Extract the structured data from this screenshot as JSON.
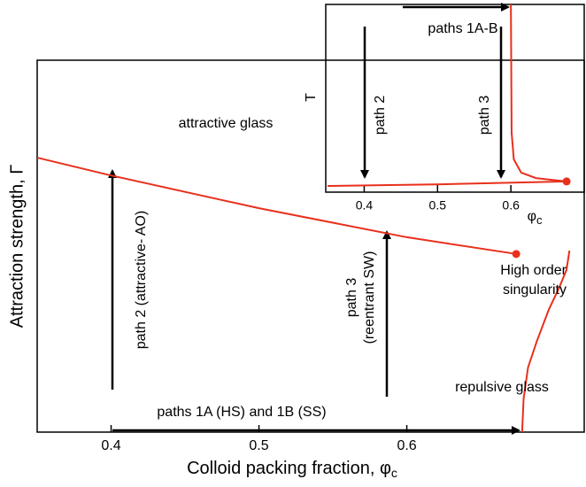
{
  "chart_data": [
    {
      "type": "line",
      "xlabel": "Colloid packing fraction, φ",
      "xlabel_sub": "c",
      "ylabel": "Attraction strength, Γ",
      "xlim": [
        0.35,
        0.72
      ],
      "xticks": [
        0.4,
        0.5,
        0.6
      ],
      "ylim": [
        0,
        1
      ],
      "series": [
        {
          "color": "#e8301c",
          "x": [
            0.35,
            0.4,
            0.5,
            0.6,
            0.674
          ],
          "values": [
            0.738,
            0.69,
            0.602,
            0.524,
            0.479
          ],
          "end_dot": true
        },
        {
          "color": "#e8301c",
          "x": [
            0.678,
            0.679,
            0.682,
            0.688,
            0.696,
            0.703,
            0.708,
            0.71
          ],
          "values": [
            0,
            0.09,
            0.174,
            0.245,
            0.329,
            0.388,
            0.436,
            0.488
          ],
          "end_dot": false
        }
      ],
      "annotations": [
        "attractive glass",
        "path 2  (attractive- AO)",
        "path 3",
        "(reentrant SW)",
        "paths 1A (HS) and 1B (SS)",
        "repulsive glass",
        "High order",
        "singularity"
      ]
    },
    {
      "type": "line",
      "xlabel": "φ",
      "xlabel_sub": "c",
      "ylabel": "T",
      "xlim": [
        0.35,
        0.7
      ],
      "xticks": [
        0.4,
        0.5,
        0.6
      ],
      "ylim": [
        0,
        1
      ],
      "series": [
        {
          "color": "#e8301c",
          "x": [
            0.35,
            0.507,
            0.676
          ],
          "values": [
            0.033,
            0.042,
            0.057
          ],
          "end_dot": true
        },
        {
          "color": "#e8301c",
          "x": [
            0.6,
            0.601,
            0.604,
            0.614,
            0.634,
            0.676
          ],
          "values": [
            1.0,
            0.316,
            0.175,
            0.104,
            0.075,
            0.057
          ],
          "end_dot": false
        }
      ],
      "annotations": [
        "paths 1A-B",
        "path 2",
        "path 3"
      ]
    }
  ]
}
